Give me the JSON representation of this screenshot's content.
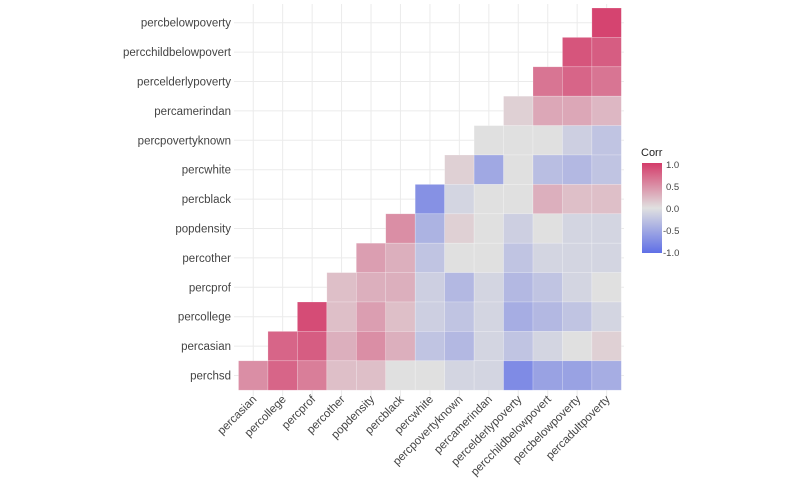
{
  "chart_data": {
    "type": "heatmap",
    "title": "",
    "xlabel": "",
    "ylabel": "",
    "rows": [
      "percbelowpoverty",
      "percchildbelowpovert",
      "percelderlypoverty",
      "percamerindan",
      "percpovertyknown",
      "percwhite",
      "percblack",
      "popdensity",
      "percother",
      "percprof",
      "percollege",
      "percasian",
      "perchsd"
    ],
    "columns": [
      "percasian",
      "percollege",
      "percprof",
      "percother",
      "popdensity",
      "percblack",
      "percwhite",
      "percpovertyknown",
      "percamerindan",
      "percelderlypoverty",
      "percchildbelowpovert",
      "percbelowpoverty",
      "percadultpoverty"
    ],
    "values": [
      [
        null,
        null,
        null,
        null,
        null,
        null,
        null,
        null,
        null,
        null,
        null,
        null,
        0.95
      ],
      [
        null,
        null,
        null,
        null,
        null,
        null,
        null,
        null,
        null,
        null,
        null,
        0.85,
        0.8
      ],
      [
        null,
        null,
        null,
        null,
        null,
        null,
        null,
        null,
        null,
        null,
        0.65,
        0.75,
        0.65
      ],
      [
        null,
        null,
        null,
        null,
        null,
        null,
        null,
        null,
        null,
        0.1,
        0.35,
        0.35,
        0.25
      ],
      [
        null,
        null,
        null,
        null,
        null,
        null,
        null,
        null,
        0.0,
        0.0,
        0.0,
        -0.15,
        -0.25
      ],
      [
        null,
        null,
        null,
        null,
        null,
        null,
        null,
        0.1,
        -0.5,
        0.0,
        -0.3,
        -0.35,
        -0.25
      ],
      [
        null,
        null,
        null,
        null,
        null,
        null,
        -0.7,
        -0.1,
        0.0,
        0.0,
        0.3,
        0.2,
        0.2
      ],
      [
        null,
        null,
        null,
        null,
        null,
        0.5,
        -0.4,
        0.1,
        0.0,
        -0.15,
        0.0,
        -0.1,
        -0.1
      ],
      [
        null,
        null,
        null,
        null,
        0.4,
        0.3,
        -0.25,
        0.0,
        0.0,
        -0.25,
        -0.1,
        -0.1,
        -0.1
      ],
      [
        null,
        null,
        null,
        0.2,
        0.3,
        0.3,
        -0.15,
        -0.35,
        -0.1,
        -0.35,
        -0.25,
        -0.1,
        0.0
      ],
      [
        null,
        null,
        0.9,
        0.2,
        0.4,
        0.2,
        -0.15,
        -0.25,
        -0.1,
        -0.45,
        -0.35,
        -0.25,
        -0.1
      ],
      [
        null,
        0.75,
        0.8,
        0.3,
        0.5,
        0.3,
        -0.25,
        -0.35,
        -0.1,
        -0.25,
        -0.1,
        0.0,
        0.1
      ],
      [
        0.5,
        0.75,
        0.6,
        0.2,
        0.2,
        0.0,
        0.0,
        -0.1,
        -0.1,
        -0.75,
        -0.55,
        -0.55,
        -0.45
      ]
    ],
    "color_scale": {
      "low": "#5F6FE6",
      "mid": "#E0E0E0",
      "high": "#D43C6A",
      "limits": [
        -1,
        1
      ]
    },
    "legend": {
      "title": "Corr",
      "ticks": [
        "1.0",
        "0.5",
        "0.0",
        "-0.5",
        "-1.0"
      ],
      "position": "right"
    },
    "grid": true
  }
}
